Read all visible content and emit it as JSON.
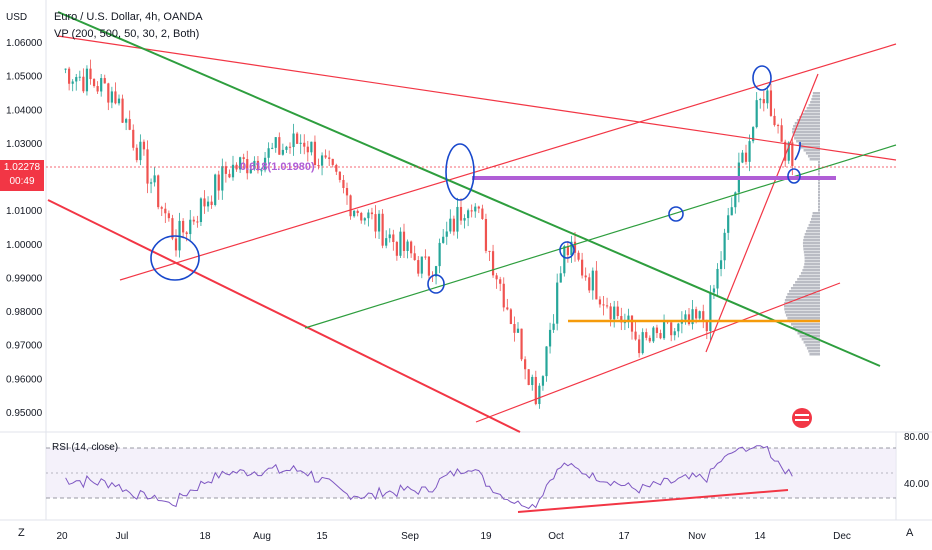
{
  "header": {
    "title": "Euro / U.S. Dollar, 4h, OANDA",
    "indicator": "VP (200, 500, 50, 30, 2, Both)"
  },
  "price_axis": {
    "unit_label": "USD",
    "current_price": "1.02278",
    "countdown": "00:49",
    "current_color": "#f23645"
  },
  "rsi": {
    "label": "RSI (14, close)",
    "upper_level": "80.00",
    "lower_level": "40.00"
  },
  "toolbar": {
    "left_btn": "Z",
    "right_btn": "A"
  },
  "colors": {
    "red": "#f23645",
    "green": "#2e9e3e",
    "blue": "#1848cc",
    "purple": "#b05ed6",
    "orange": "#f59b0b",
    "candle_up": "#26a69a",
    "candle_down": "#ef5350",
    "rsi_line": "#7e57c2"
  },
  "chart_data": {
    "type": "candlestick",
    "title": "Euro / U.S. Dollar, 4h, OANDA",
    "price_ticks": [
      "1.06000",
      "1.05000",
      "1.04000",
      "1.03000",
      "1.02000",
      "1.01000",
      "1.00000",
      "0.99000",
      "0.98000",
      "0.97000",
      "0.96000",
      "0.95000"
    ],
    "time_ticks": [
      "20",
      "Jul",
      "18",
      "Aug",
      "15",
      "Sep",
      "19",
      "Oct",
      "17",
      "Nov",
      "14",
      "Dec"
    ],
    "annotation_label": "0.618(1.01980)",
    "series": [
      {
        "name": "EURUSD",
        "x": [
          "Jun 20",
          "Jul 1",
          "Jul 14",
          "Jul 25",
          "Aug 10",
          "Aug 20",
          "Sep 5",
          "Sep 14",
          "Sep 28",
          "Oct 4",
          "Oct 20",
          "Nov 3",
          "Nov 10",
          "Nov 15",
          "Nov 21"
        ],
        "values": [
          1.052,
          1.045,
          1.001,
          1.022,
          1.031,
          1.012,
          0.992,
          1.015,
          0.955,
          0.999,
          0.97,
          0.978,
          1.024,
          1.046,
          1.022
        ]
      }
    ]
  }
}
